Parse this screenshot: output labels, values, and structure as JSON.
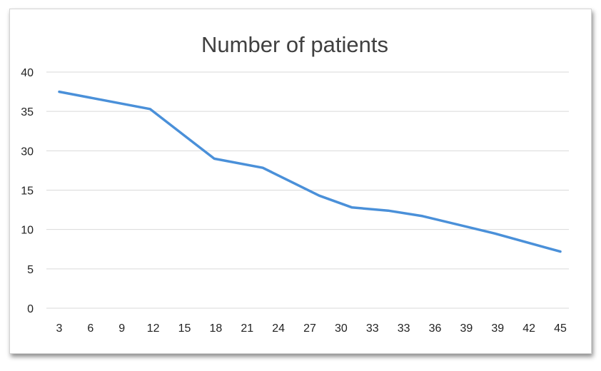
{
  "chart_data": {
    "type": "line",
    "title": "Number of patients",
    "xlabel": "",
    "ylabel": "",
    "x_tick_labels": [
      "3",
      "6",
      "9",
      "12",
      "15",
      "18",
      "21",
      "24",
      "27",
      "30",
      "33",
      "33",
      "36",
      "39",
      "39",
      "42",
      "45"
    ],
    "y_tick_labels": [
      "0",
      "5",
      "10",
      "15",
      "30",
      "35",
      "40"
    ],
    "grid": true,
    "legend": "none",
    "series": [
      {
        "color": "#4a90d9",
        "points": [
          {
            "x": 0,
            "y": 37.5
          },
          {
            "x": 2.9,
            "y": 35.3
          },
          {
            "x": 4.95,
            "y": 27
          },
          {
            "x": 6.5,
            "y": 23.5
          },
          {
            "x": 8.3,
            "y": 14.3
          },
          {
            "x": 9.35,
            "y": 12.8
          },
          {
            "x": 10.5,
            "y": 12.4
          },
          {
            "x": 11.6,
            "y": 11.7
          },
          {
            "x": 13.9,
            "y": 9.5
          },
          {
            "x": 16,
            "y": 7.2
          }
        ]
      }
    ]
  }
}
